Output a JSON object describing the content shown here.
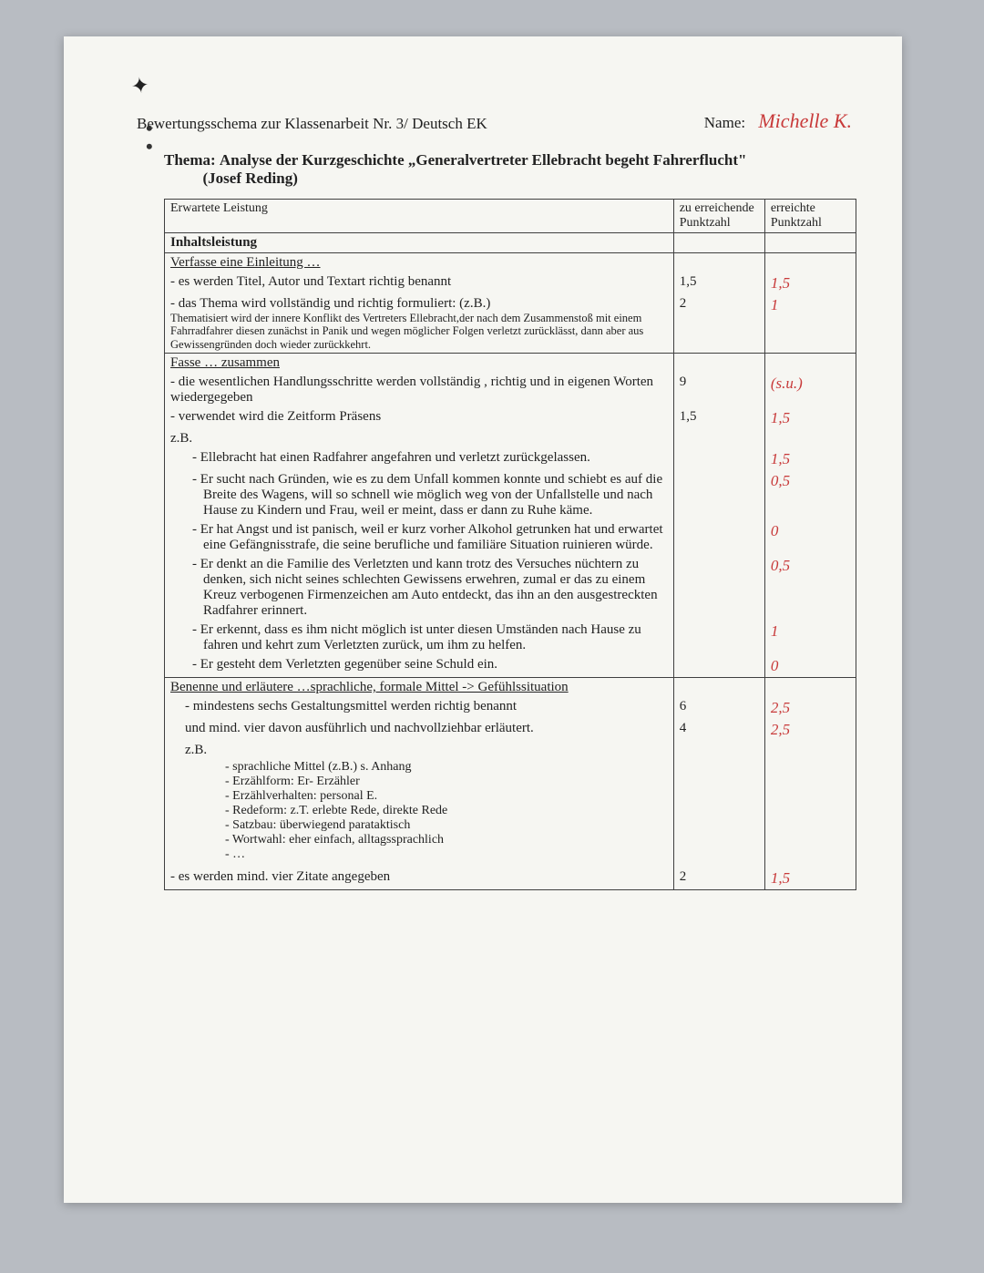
{
  "header": {
    "title": "Bewertungsschema zur Klassenarbeit Nr. 3/ Deutsch EK",
    "name_label": "Name:",
    "name_value": "Michelle K."
  },
  "thema": {
    "label": "Thema:",
    "text": "Analyse der Kurzgeschichte „Generalvertreter Ellebracht begeht Fahrerflucht\"",
    "author": "(Josef Reding)"
  },
  "cols": {
    "c1": "Erwartete Leistung",
    "c2": "zu erreichende Punktzahl",
    "c3": "erreichte Punktzahl"
  },
  "sections": {
    "inhalt": "Inhaltsleistung",
    "einleitung": "Verfasse eine Einleitung …",
    "fasse": "Fasse … zusammen",
    "benenne": "Benenne  und  erläutere   …sprachliche,  formale  Mittel   -> Gefühlssituation"
  },
  "rows": {
    "r1": {
      "text": "- es werden Titel, Autor und Textart richtig benannt",
      "max": "1,5",
      "got": "1,5"
    },
    "r2": {
      "text": "- das Thema wird vollständig und richtig formuliert: (z.B.)",
      "sub": "Thematisiert wird der innere Konflikt des Vertreters Ellebracht,der nach dem Zusammenstoß mit einem Fahrradfahrer diesen zunächst in Panik und wegen möglicher Folgen verletzt zurücklässt, dann aber aus Gewissengründen doch wieder zurückkehrt.",
      "max": "2",
      "got": "1"
    },
    "r3": {
      "text": "- die wesentlichen Handlungsschritte werden vollständig , richtig und in eigenen Worten wiedergegeben",
      "max": "9",
      "got": "(s.u.)"
    },
    "r4": {
      "text": "- verwendet wird die Zeitform Präsens",
      "max": "1,5",
      "got": "1,5"
    },
    "zb": "z.B.",
    "r5": {
      "text": "- Ellebracht hat einen Radfahrer angefahren und verletzt zurückgelassen.",
      "got": "1,5"
    },
    "r6": {
      "text": "- Er sucht nach Gründen, wie es zu dem Unfall kommen konnte und schiebt es auf die Breite des Wagens, will so schnell wie möglich weg von der Unfallstelle und nach Hause zu Kindern und Frau, weil er meint, dass er dann zu Ruhe käme.",
      "got": "0,5"
    },
    "r7": {
      "text": "- Er hat Angst und ist panisch, weil er kurz vorher Alkohol getrunken hat und erwartet eine Gefängnisstrafe, die seine berufliche und familiäre Situation ruinieren würde.",
      "got": "0"
    },
    "r8": {
      "text": "- Er denkt an die Familie des Verletzten und kann trotz des Versuches nüchtern zu denken, sich nicht seines schlechten Gewissens erwehren, zumal er das zu einem Kreuz verbogenen Firmenzeichen am Auto entdeckt, das ihn an den ausgestreckten Radfahrer erinnert.",
      "got": "0,5"
    },
    "r9": {
      "text": "- Er erkennt, dass es ihm nicht möglich ist unter diesen Umständen nach Hause zu fahren und kehrt zum Verletzten zurück, um ihm zu helfen.",
      "got": "1"
    },
    "r10": {
      "text": "- Er gesteht dem Verletzten gegenüber seine Schuld ein.",
      "got": "0"
    },
    "r11": {
      "text": "- mindestens sechs Gestaltungsmittel werden richtig benannt",
      "max": "6",
      "got": "2,5"
    },
    "r12": {
      "text": "und mind. vier davon ausführlich und nachvollziehbar erläutert.",
      "max": "4",
      "got": "2,5"
    },
    "zb2": "z.B.",
    "bullets": {
      "b1": "sprachliche Mittel (z.B.)  s. Anhang",
      "b2": "Erzählform: Er- Erzähler",
      "b3": "Erzählverhalten: personal E.",
      "b4": "Redeform: z.T. erlebte Rede, direkte Rede",
      "b5": "Satzbau: überwiegend parataktisch",
      "b6": "Wortwahl: eher einfach, alltagssprachlich",
      "b7": "…"
    },
    "r13": {
      "text": "- es werden mind. vier Zitate angegeben",
      "max": "2",
      "got": "1,5"
    }
  },
  "colors": {
    "page_bg": "#f6f6f2",
    "outer_bg": "#b8bcc2",
    "score_color": "#c83a3a",
    "border": "#404040"
  }
}
